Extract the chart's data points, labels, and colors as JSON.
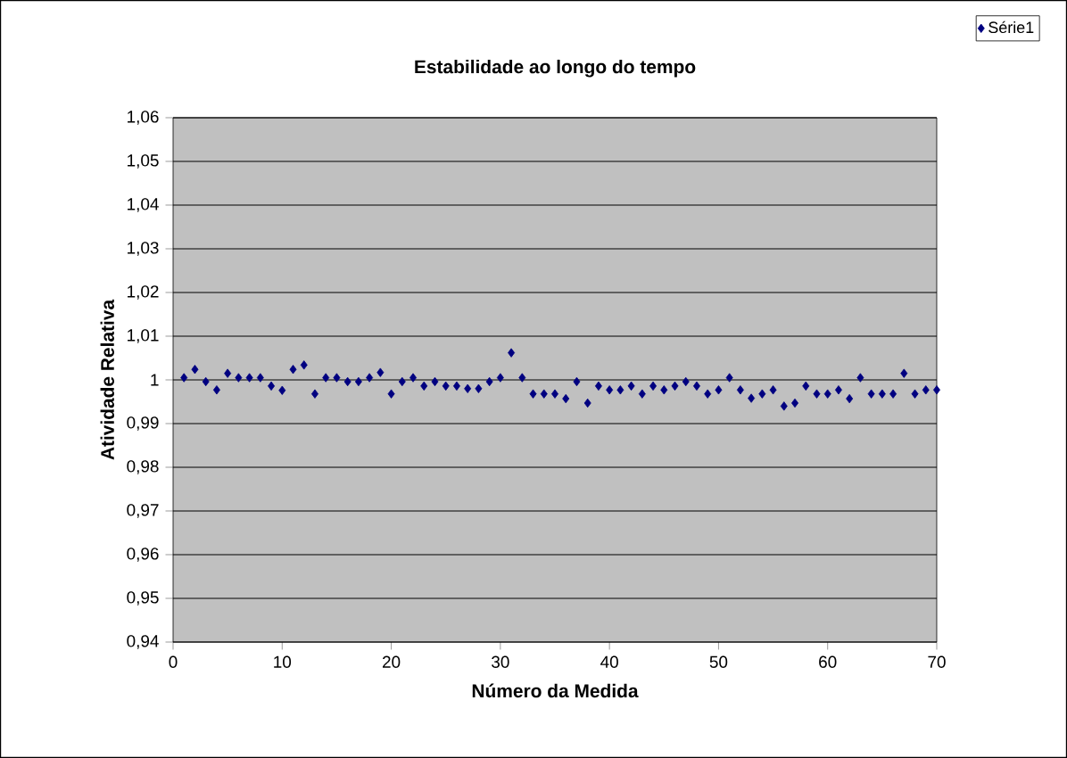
{
  "chart_data": {
    "type": "scatter",
    "title": "Estabilidade ao longo do tempo",
    "xlabel": "Número da Medida",
    "ylabel": "Atividade Relativa",
    "x": [
      1,
      2,
      3,
      4,
      5,
      6,
      7,
      8,
      9,
      10,
      11,
      12,
      13,
      14,
      15,
      16,
      17,
      18,
      19,
      20,
      21,
      22,
      23,
      24,
      25,
      26,
      27,
      28,
      29,
      30,
      31,
      32,
      33,
      34,
      35,
      36,
      37,
      38,
      39,
      40,
      41,
      42,
      43,
      44,
      45,
      46,
      47,
      48,
      49,
      50,
      51,
      52,
      53,
      54,
      55,
      56,
      57,
      58,
      59,
      60,
      61,
      62,
      63,
      64,
      65,
      66,
      67,
      68,
      69,
      70
    ],
    "series": [
      {
        "name": "Série1",
        "color": "#000080",
        "values": [
          1.0005,
          1.0024,
          0.9996,
          0.9977,
          1.0015,
          1.0005,
          1.0005,
          1.0005,
          0.9986,
          0.9976,
          1.0024,
          1.0034,
          0.9968,
          1.0005,
          1.0005,
          0.9996,
          0.9996,
          1.0005,
          1.0017,
          0.9968,
          0.9996,
          1.0005,
          0.9986,
          0.9996,
          0.9986,
          0.9986,
          0.998,
          0.998,
          0.9996,
          1.0005,
          1.0062,
          1.0005,
          0.9968,
          0.9968,
          0.9968,
          0.9957,
          0.9996,
          0.9947,
          0.9986,
          0.9977,
          0.9977,
          0.9986,
          0.9968,
          0.9986,
          0.9977,
          0.9986,
          0.9996,
          0.9986,
          0.9968,
          0.9977,
          1.0005,
          0.9977,
          0.9958,
          0.9968,
          0.9977,
          0.994,
          0.9947,
          0.9986,
          0.9968,
          0.9968,
          0.9977,
          0.9957,
          1.0005,
          0.9968,
          0.9968,
          0.9968,
          1.0015,
          0.9968,
          0.9977,
          0.9977
        ]
      }
    ],
    "xlim": [
      0,
      70
    ],
    "xticks": [
      0,
      10,
      20,
      30,
      40,
      50,
      60,
      70
    ],
    "ylim": [
      0.94,
      1.06
    ],
    "yticks": [
      {
        "value": 0.94,
        "label": "0,94"
      },
      {
        "value": 0.95,
        "label": "0,95"
      },
      {
        "value": 0.96,
        "label": "0,96"
      },
      {
        "value": 0.97,
        "label": "0,97"
      },
      {
        "value": 0.98,
        "label": "0,98"
      },
      {
        "value": 0.99,
        "label": "0,99"
      },
      {
        "value": 1,
        "label": "1"
      },
      {
        "value": 1.01,
        "label": "1,01"
      },
      {
        "value": 1.02,
        "label": "1,02"
      },
      {
        "value": 1.03,
        "label": "1,03"
      },
      {
        "value": 1.04,
        "label": "1,04"
      },
      {
        "value": 1.05,
        "label": "1,05"
      },
      {
        "value": 1.06,
        "label": "1,06"
      }
    ],
    "grid": "y",
    "legend": "top right",
    "marker": "diamond"
  }
}
